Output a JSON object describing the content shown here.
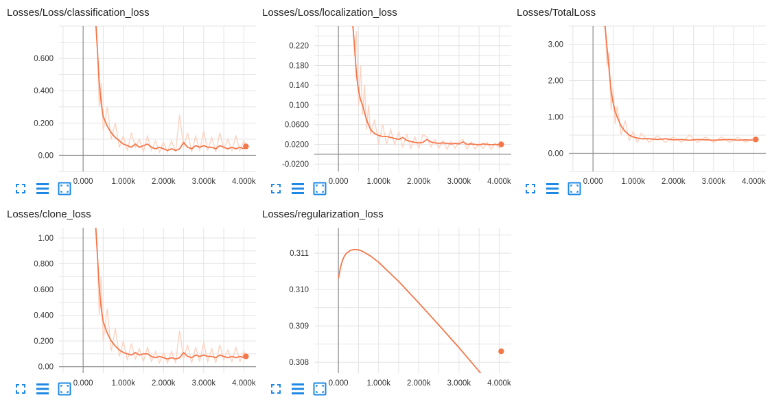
{
  "colors": {
    "series": "#f4774a",
    "raw": "#fbd3c2",
    "grid": "#e3e3e3",
    "axis": "#8d8d8d",
    "icon": "#1e88e5"
  },
  "toolbar_icons": [
    "fullscreen-icon",
    "toggle-y-log-icon",
    "fit-domain-icon"
  ],
  "chart_data": [
    {
      "type": "line",
      "title": "Losses/Loss/classification_loss",
      "xlabel": "",
      "ylabel": "",
      "xlim": [
        -600,
        4300
      ],
      "ylim": [
        -0.1,
        0.8
      ],
      "xticks": [
        0,
        1000,
        2000,
        3000,
        4000
      ],
      "xtick_labels": [
        "0.000",
        "1.000k",
        "2.000k",
        "3.000k",
        "4.000k"
      ],
      "yticks": [
        0,
        0.2,
        0.4,
        0.6
      ],
      "ytick_labels": [
        "0.00",
        "0.200",
        "0.400",
        "0.600"
      ],
      "grid": true,
      "series": [
        {
          "values_x": [
            0,
            300,
            350,
            400,
            450,
            500,
            600,
            700,
            800,
            900,
            1000,
            1100,
            1200,
            1300,
            1400,
            1500,
            1600,
            1700,
            1800,
            1900,
            2000,
            2100,
            2200,
            2300,
            2400,
            2500,
            2600,
            2700,
            2800,
            2900,
            3000,
            3100,
            3200,
            3300,
            3400,
            3500,
            3600,
            3700,
            3800,
            3900,
            4000,
            4050
          ],
          "values_y": [
            0.95,
            0.88,
            0.68,
            0.45,
            0.32,
            0.24,
            0.18,
            0.14,
            0.11,
            0.09,
            0.07,
            0.06,
            0.05,
            0.07,
            0.05,
            0.06,
            0.07,
            0.05,
            0.04,
            0.05,
            0.04,
            0.03,
            0.04,
            0.03,
            0.04,
            0.08,
            0.05,
            0.04,
            0.06,
            0.05,
            0.06,
            0.05,
            0.05,
            0.04,
            0.06,
            0.05,
            0.04,
            0.05,
            0.04,
            0.05,
            0.04,
            0.055
          ],
          "raw_y": [
            0.95,
            0.95,
            0.7,
            0.3,
            0.45,
            0.15,
            0.3,
            0.1,
            0.2,
            0.05,
            0.12,
            0.03,
            0.14,
            0.05,
            0.1,
            0.02,
            0.12,
            0.03,
            0.09,
            0.02,
            0.08,
            0.02,
            0.09,
            0.02,
            0.25,
            0.05,
            0.14,
            0.02,
            0.12,
            0.03,
            0.15,
            0.03,
            0.11,
            0.02,
            0.14,
            0.04,
            0.1,
            0.03,
            0.12,
            0.03,
            0.09,
            0.06
          ]
        }
      ]
    },
    {
      "type": "line",
      "title": "Losses/Loss/localization_loss",
      "xlabel": "",
      "ylabel": "",
      "xlim": [
        -600,
        4300
      ],
      "ylim": [
        -0.035,
        0.26
      ],
      "xticks": [
        0,
        1000,
        2000,
        3000,
        4000
      ],
      "xtick_labels": [
        "0.000",
        "1.000k",
        "2.000k",
        "3.000k",
        "4.000k"
      ],
      "yticks": [
        -0.02,
        0.02,
        0.06,
        0.1,
        0.14,
        0.18,
        0.22
      ],
      "ytick_labels": [
        "-0.0200",
        "0.0200",
        "0.0600",
        "0.100",
        "0.140",
        "0.180",
        "0.220"
      ],
      "grid": true,
      "series": [
        {
          "values_x": [
            0,
            350,
            400,
            450,
            500,
            550,
            600,
            650,
            700,
            750,
            800,
            900,
            1000,
            1100,
            1200,
            1300,
            1400,
            1500,
            1600,
            1700,
            1800,
            1900,
            2000,
            2100,
            2200,
            2300,
            2400,
            2500,
            2600,
            2700,
            2800,
            2900,
            3000,
            3100,
            3200,
            3300,
            3400,
            3500,
            3600,
            3700,
            3800,
            3900,
            4000,
            4050
          ],
          "values_y": [
            0.3,
            0.27,
            0.22,
            0.16,
            0.13,
            0.11,
            0.1,
            0.085,
            0.07,
            0.06,
            0.05,
            0.042,
            0.038,
            0.036,
            0.036,
            0.034,
            0.032,
            0.03,
            0.034,
            0.028,
            0.026,
            0.024,
            0.023,
            0.024,
            0.03,
            0.025,
            0.023,
            0.022,
            0.023,
            0.022,
            0.021,
            0.022,
            0.021,
            0.025,
            0.02,
            0.021,
            0.02,
            0.019,
            0.021,
            0.02,
            0.019,
            0.02,
            0.019,
            0.02
          ],
          "raw_y": [
            0.3,
            0.3,
            0.2,
            0.25,
            0.1,
            0.18,
            0.08,
            0.14,
            0.05,
            0.1,
            0.04,
            0.07,
            0.02,
            0.06,
            0.02,
            0.05,
            0.02,
            0.045,
            0.015,
            0.04,
            0.012,
            0.035,
            0.012,
            0.04,
            0.035,
            0.015,
            0.03,
            0.012,
            0.028,
            0.01,
            0.026,
            0.012,
            0.026,
            0.03,
            0.01,
            0.025,
            0.01,
            0.022,
            0.012,
            0.024,
            0.01,
            0.022,
            0.012,
            0.02
          ]
        }
      ]
    },
    {
      "type": "line",
      "title": "Losses/TotalLoss",
      "xlabel": "",
      "ylabel": "",
      "xlim": [
        -600,
        4300
      ],
      "ylim": [
        -0.5,
        3.5
      ],
      "xticks": [
        0,
        1000,
        2000,
        3000,
        4000
      ],
      "xtick_labels": [
        "0.000",
        "1.000k",
        "2.000k",
        "3.000k",
        "4.000k"
      ],
      "yticks": [
        0,
        1,
        2,
        3
      ],
      "ytick_labels": [
        "0.00",
        "1.00",
        "2.00",
        "3.00"
      ],
      "grid": true,
      "series": [
        {
          "values_x": [
            0,
            300,
            350,
            400,
            450,
            500,
            550,
            600,
            700,
            800,
            900,
            1000,
            1100,
            1200,
            1400,
            1600,
            1800,
            2000,
            2200,
            2400,
            2600,
            2800,
            3000,
            3200,
            3400,
            3600,
            3800,
            4000,
            4050
          ],
          "values_y": [
            3.6,
            3.5,
            2.9,
            2.3,
            1.7,
            1.4,
            1.15,
            1.0,
            0.75,
            0.6,
            0.5,
            0.45,
            0.42,
            0.4,
            0.4,
            0.38,
            0.4,
            0.37,
            0.38,
            0.36,
            0.38,
            0.37,
            0.36,
            0.37,
            0.38,
            0.36,
            0.37,
            0.36,
            0.38
          ],
          "raw_y": [
            3.6,
            3.6,
            2.4,
            2.8,
            1.2,
            1.8,
            0.8,
            1.3,
            0.5,
            0.9,
            0.35,
            0.6,
            0.3,
            0.55,
            0.3,
            0.48,
            0.3,
            0.45,
            0.3,
            0.5,
            0.3,
            0.45,
            0.3,
            0.45,
            0.3,
            0.44,
            0.3,
            0.42,
            0.38
          ]
        }
      ]
    },
    {
      "type": "line",
      "title": "Losses/clone_loss",
      "xlabel": "",
      "ylabel": "",
      "xlim": [
        -600,
        4300
      ],
      "ylim": [
        -0.05,
        1.08
      ],
      "xticks": [
        0,
        1000,
        2000,
        3000,
        4000
      ],
      "xtick_labels": [
        "0.000",
        "1.000k",
        "2.000k",
        "3.000k",
        "4.000k"
      ],
      "yticks": [
        0,
        0.2,
        0.4,
        0.6,
        0.8,
        1.0
      ],
      "ytick_labels": [
        "0.00",
        "0.200",
        "0.400",
        "0.600",
        "0.800",
        "1.00"
      ],
      "grid": true,
      "series": [
        {
          "values_x": [
            0,
            300,
            350,
            400,
            450,
            500,
            600,
            700,
            800,
            900,
            1000,
            1100,
            1200,
            1300,
            1400,
            1500,
            1600,
            1700,
            1800,
            1900,
            2000,
            2100,
            2200,
            2300,
            2400,
            2500,
            2600,
            2700,
            2800,
            2900,
            3000,
            3100,
            3200,
            3300,
            3400,
            3500,
            3600,
            3700,
            3800,
            3900,
            4000,
            4050
          ],
          "values_y": [
            1.2,
            1.15,
            0.9,
            0.62,
            0.45,
            0.35,
            0.26,
            0.2,
            0.16,
            0.13,
            0.11,
            0.1,
            0.09,
            0.11,
            0.09,
            0.1,
            0.1,
            0.08,
            0.07,
            0.08,
            0.07,
            0.06,
            0.07,
            0.06,
            0.07,
            0.11,
            0.08,
            0.07,
            0.09,
            0.08,
            0.09,
            0.08,
            0.08,
            0.07,
            0.09,
            0.08,
            0.07,
            0.08,
            0.07,
            0.08,
            0.07,
            0.08
          ],
          "raw_y": [
            1.2,
            1.2,
            0.95,
            0.4,
            0.7,
            0.2,
            0.45,
            0.12,
            0.3,
            0.08,
            0.2,
            0.05,
            0.18,
            0.06,
            0.14,
            0.04,
            0.15,
            0.04,
            0.12,
            0.03,
            0.11,
            0.03,
            0.12,
            0.03,
            0.28,
            0.06,
            0.17,
            0.03,
            0.15,
            0.04,
            0.19,
            0.04,
            0.14,
            0.03,
            0.17,
            0.05,
            0.13,
            0.04,
            0.15,
            0.04,
            0.12,
            0.08
          ]
        }
      ]
    },
    {
      "type": "line",
      "title": "Losses/regularization_loss",
      "xlabel": "",
      "ylabel": "",
      "xlim": [
        -600,
        4300
      ],
      "ylim": [
        0.3077,
        0.3117
      ],
      "xticks": [
        0,
        1000,
        2000,
        3000,
        4000
      ],
      "xtick_labels": [
        "0.000",
        "1.000k",
        "2.000k",
        "3.000k",
        "4.000k"
      ],
      "yticks": [
        0.308,
        0.309,
        0.31,
        0.311
      ],
      "ytick_labels": [
        "0.308",
        "0.309",
        "0.310",
        "0.311"
      ],
      "grid": true,
      "series": [
        {
          "values_x": [
            0,
            50,
            100,
            150,
            200,
            300,
            400,
            500,
            600,
            800,
            1000,
            1500,
            2000,
            2500,
            3000,
            3500,
            4000,
            4050
          ],
          "values_y": [
            0.3103,
            0.3106,
            0.3108,
            0.31092,
            0.311,
            0.31108,
            0.3111,
            0.31109,
            0.31105,
            0.31092,
            0.31075,
            0.31022,
            0.30963,
            0.30902,
            0.3084,
            0.30775,
            0.3071,
            0.3083
          ],
          "raw_y": []
        }
      ]
    }
  ]
}
